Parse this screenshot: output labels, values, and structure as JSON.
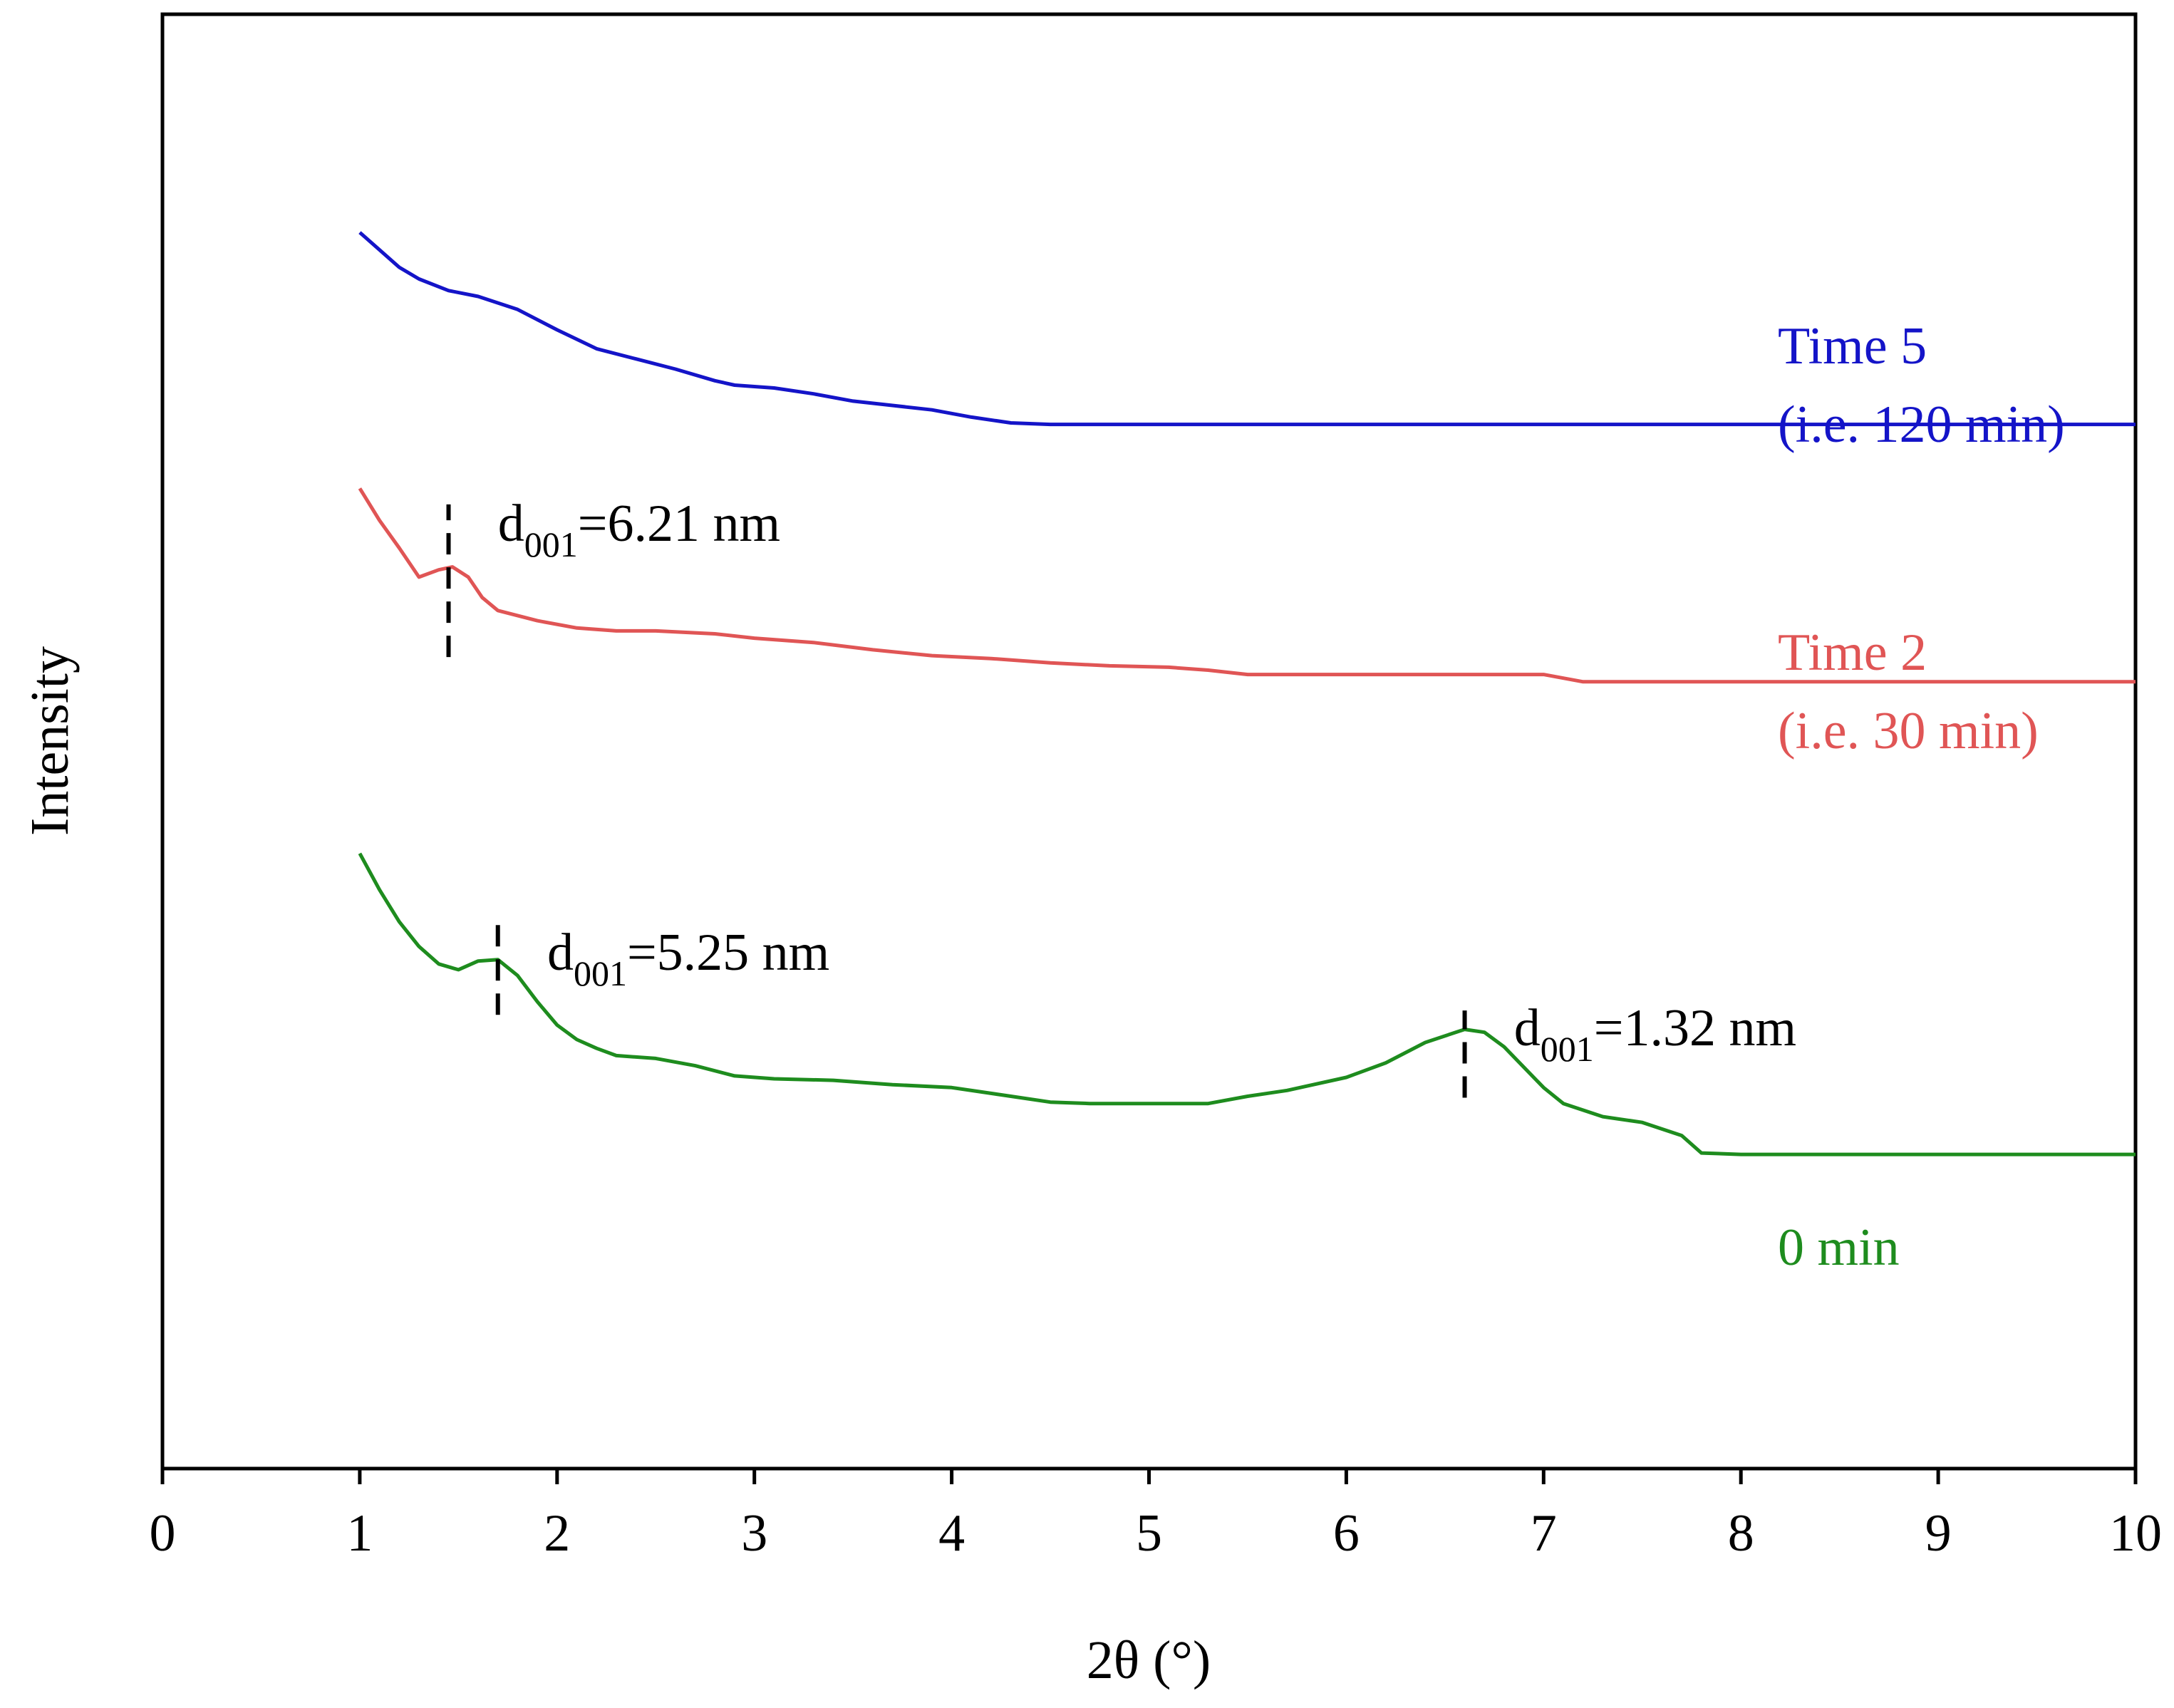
{
  "chart_data": {
    "type": "line",
    "title": "",
    "xlabel": "2θ (°)",
    "ylabel": "Intensity",
    "xlim": [
      0,
      10
    ],
    "ylim": [
      0,
      100
    ],
    "xticks": [
      0,
      1,
      2,
      3,
      4,
      5,
      6,
      7,
      8,
      9,
      10
    ],
    "xtick_labels": [
      "0",
      "1",
      "2",
      "3",
      "4",
      "5",
      "6",
      "7",
      "8",
      "9",
      "10"
    ],
    "grid": false,
    "series": [
      {
        "name": "Time 5 (i.e. 120 min)",
        "label_lines": [
          "Time 5",
          "(i.e. 120 min)"
        ],
        "color": "#1414c8",
        "points": [
          [
            1.0,
            85.0
          ],
          [
            1.1,
            83.8
          ],
          [
            1.2,
            82.6
          ],
          [
            1.3,
            81.8
          ],
          [
            1.45,
            81.0
          ],
          [
            1.6,
            80.6
          ],
          [
            1.8,
            79.7
          ],
          [
            2.0,
            78.3
          ],
          [
            2.2,
            77.0
          ],
          [
            2.4,
            76.3
          ],
          [
            2.6,
            75.6
          ],
          [
            2.8,
            74.8
          ],
          [
            2.9,
            74.5
          ],
          [
            3.1,
            74.3
          ],
          [
            3.3,
            73.9
          ],
          [
            3.5,
            73.4
          ],
          [
            3.7,
            73.1
          ],
          [
            3.9,
            72.8
          ],
          [
            4.1,
            72.3
          ],
          [
            4.3,
            71.9
          ],
          [
            4.5,
            71.8
          ],
          [
            4.8,
            71.8
          ],
          [
            5.5,
            71.8
          ],
          [
            7.0,
            71.8
          ],
          [
            8.5,
            71.8
          ],
          [
            10.0,
            71.8
          ]
        ]
      },
      {
        "name": "Time 2 (i.e. 30 min)",
        "label_lines": [
          "Time 2",
          "(i.e. 30 min)"
        ],
        "color": "#e05555",
        "points": [
          [
            1.0,
            67.4
          ],
          [
            1.1,
            65.2
          ],
          [
            1.2,
            63.3
          ],
          [
            1.3,
            61.3
          ],
          [
            1.4,
            61.8
          ],
          [
            1.47,
            62.0
          ],
          [
            1.55,
            61.3
          ],
          [
            1.62,
            59.9
          ],
          [
            1.7,
            59.0
          ],
          [
            1.9,
            58.3
          ],
          [
            2.1,
            57.8
          ],
          [
            2.3,
            57.6
          ],
          [
            2.5,
            57.6
          ],
          [
            2.8,
            57.4
          ],
          [
            3.0,
            57.1
          ],
          [
            3.3,
            56.8
          ],
          [
            3.6,
            56.3
          ],
          [
            3.9,
            55.9
          ],
          [
            4.2,
            55.7
          ],
          [
            4.5,
            55.4
          ],
          [
            4.8,
            55.2
          ],
          [
            5.1,
            55.1
          ],
          [
            5.3,
            54.9
          ],
          [
            5.5,
            54.6
          ],
          [
            6.0,
            54.6
          ],
          [
            6.5,
            54.6
          ],
          [
            7.0,
            54.6
          ],
          [
            7.2,
            54.1
          ],
          [
            7.6,
            54.1
          ],
          [
            8.5,
            54.1
          ],
          [
            10.0,
            54.1
          ]
        ]
      },
      {
        "name": "0 min",
        "label_lines": [
          "0 min"
        ],
        "color": "#1e8c1e",
        "points": [
          [
            1.0,
            42.3
          ],
          [
            1.1,
            39.8
          ],
          [
            1.2,
            37.6
          ],
          [
            1.3,
            35.9
          ],
          [
            1.4,
            34.7
          ],
          [
            1.5,
            34.3
          ],
          [
            1.6,
            34.9
          ],
          [
            1.7,
            35.0
          ],
          [
            1.8,
            33.9
          ],
          [
            1.9,
            32.1
          ],
          [
            2.0,
            30.5
          ],
          [
            2.1,
            29.5
          ],
          [
            2.2,
            28.9
          ],
          [
            2.3,
            28.4
          ],
          [
            2.5,
            28.2
          ],
          [
            2.7,
            27.7
          ],
          [
            2.9,
            27.0
          ],
          [
            3.1,
            26.8
          ],
          [
            3.4,
            26.7
          ],
          [
            3.7,
            26.4
          ],
          [
            4.0,
            26.2
          ],
          [
            4.3,
            25.6
          ],
          [
            4.5,
            25.2
          ],
          [
            4.7,
            25.1
          ],
          [
            5.0,
            25.1
          ],
          [
            5.3,
            25.1
          ],
          [
            5.5,
            25.6
          ],
          [
            5.7,
            26.0
          ],
          [
            6.0,
            26.9
          ],
          [
            6.2,
            27.9
          ],
          [
            6.4,
            29.3
          ],
          [
            6.6,
            30.2
          ],
          [
            6.7,
            30.0
          ],
          [
            6.8,
            29.0
          ],
          [
            6.9,
            27.6
          ],
          [
            7.0,
            26.2
          ],
          [
            7.1,
            25.1
          ],
          [
            7.3,
            24.2
          ],
          [
            7.5,
            23.8
          ],
          [
            7.7,
            22.9
          ],
          [
            7.8,
            21.7
          ],
          [
            8.0,
            21.6
          ],
          [
            9.0,
            21.6
          ],
          [
            10.0,
            21.6
          ]
        ]
      }
    ],
    "annotations": [
      {
        "x": 1.45,
        "y_range": [
          55.8,
          66.3
        ],
        "label_main": "d",
        "label_sub": "001",
        "label_value": "=6.21 nm",
        "text_at": [
          1.7,
          63.8
        ]
      },
      {
        "x": 1.7,
        "y_range": [
          31.2,
          38.1
        ],
        "label_main": "d",
        "label_sub": "001",
        "label_value": "=5.25 nm",
        "text_at": [
          1.95,
          34.3
        ]
      },
      {
        "x": 6.6,
        "y_range": [
          25.5,
          31.5
        ],
        "label_main": "d",
        "label_sub": "001",
        "label_value": "=1.32 nm",
        "text_at": [
          6.85,
          29.1
        ]
      }
    ]
  }
}
